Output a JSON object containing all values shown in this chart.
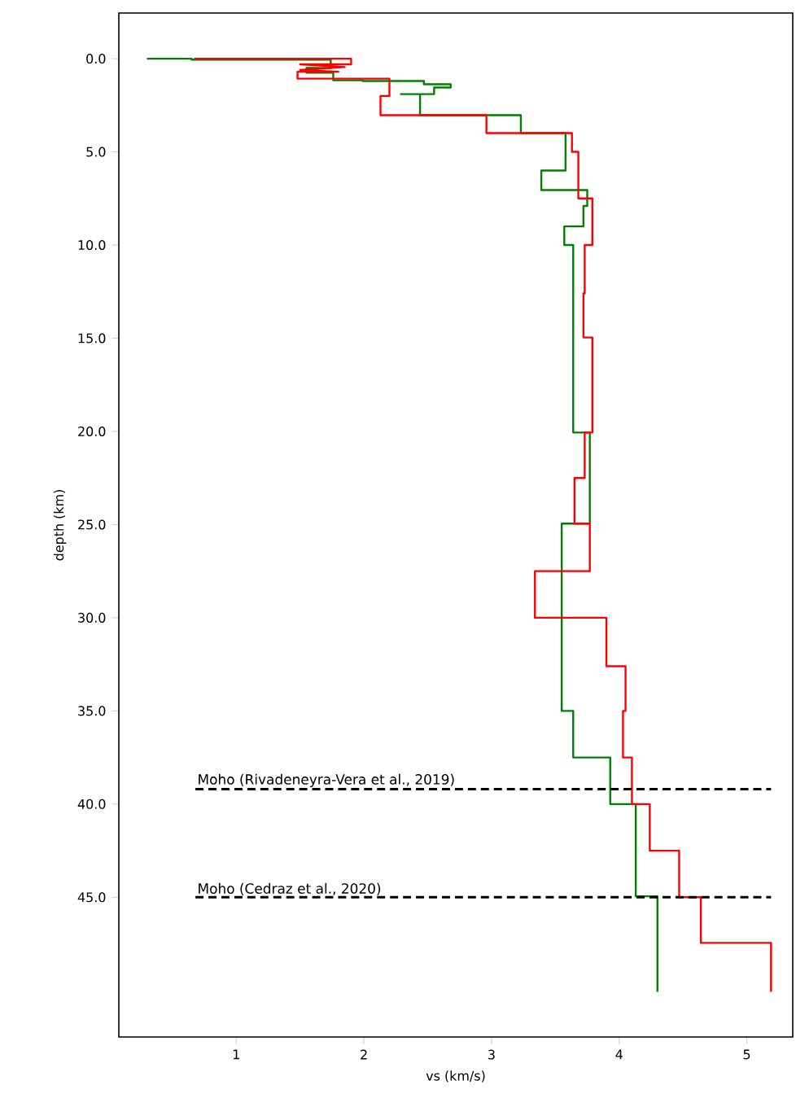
{
  "chart_data": {
    "type": "line",
    "xlabel": "vs (km/s)",
    "ylabel": "depth (km)",
    "xlim": [
      0.08,
      5.36
    ],
    "ylim": [
      52.5,
      -2.45
    ],
    "xticks": [
      1,
      2,
      3,
      4,
      5
    ],
    "yticks": [
      {
        "value": 0,
        "label": "0.0"
      },
      {
        "value": 5,
        "label": "5.0"
      },
      {
        "value": 10,
        "label": "10.0"
      },
      {
        "value": 15,
        "label": "15.0"
      },
      {
        "value": 20,
        "label": "20.0"
      },
      {
        "value": 25,
        "label": "25.0"
      },
      {
        "value": 30,
        "label": "30.0"
      },
      {
        "value": 35,
        "label": "35.0"
      },
      {
        "value": 40,
        "label": "40.0"
      },
      {
        "value": 45,
        "label": "45.0"
      }
    ],
    "grid": false,
    "legend": false,
    "marker": "none",
    "series": [
      {
        "color": "#008000",
        "line_style": "solid",
        "x": [
          0.3,
          0.65,
          0.65,
          1.74,
          1.74,
          1.55,
          1.55,
          1.76,
          1.76,
          1.99,
          1.99,
          2.47,
          2.47,
          2.68,
          2.68,
          2.55,
          2.55,
          2.29,
          2.44,
          2.44,
          3.23,
          3.23,
          3.58,
          3.58,
          3.39,
          3.39,
          3.75,
          3.75,
          3.72,
          3.72,
          3.57,
          3.57,
          3.64,
          3.64,
          3.77,
          3.77,
          3.55,
          3.55,
          3.64,
          3.64,
          3.93,
          3.93,
          4.13,
          4.13,
          4.3,
          4.3
        ],
        "values": [
          0,
          0,
          0.05,
          0.05,
          0.5,
          0.5,
          0.75,
          0.75,
          1.16,
          1.16,
          1.2,
          1.2,
          1.37,
          1.37,
          1.55,
          1.55,
          1.9,
          1.9,
          1.9,
          3.03,
          3.03,
          3.99,
          3.99,
          6.0,
          6.0,
          7.05,
          7.05,
          7.9,
          7.9,
          9.0,
          9.0,
          10.0,
          10.0,
          20.06,
          20.06,
          24.95,
          24.95,
          35.0,
          35.0,
          37.5,
          37.5,
          40.0,
          40.0,
          44.95,
          44.95,
          50.07
        ]
      },
      {
        "color": "#ff0000",
        "line_style": "solid",
        "x": [
          0.67,
          1.9,
          1.9,
          1.5,
          1.85,
          1.5,
          1.8,
          1.48,
          1.48,
          2.2,
          2.2,
          2.13,
          2.13,
          2.96,
          2.96,
          3.63,
          3.63,
          3.68,
          3.68,
          3.79,
          3.79,
          3.73,
          3.73,
          3.72,
          3.72,
          3.79,
          3.79,
          3.73,
          3.73,
          3.65,
          3.65,
          3.77,
          3.77,
          3.34,
          3.34,
          3.9,
          3.9,
          4.05,
          4.05,
          4.03,
          4.03,
          4.1,
          4.1,
          4.24,
          4.24,
          4.47,
          4.47,
          4.64,
          4.64,
          5.19,
          5.19
        ],
        "values": [
          0,
          0,
          0.3,
          0.3,
          0.45,
          0.6,
          0.7,
          0.7,
          1.07,
          1.07,
          2.0,
          2.0,
          3.03,
          3.03,
          3.99,
          3.99,
          5.0,
          5.0,
          7.5,
          7.5,
          10.0,
          10.0,
          12.6,
          12.6,
          14.96,
          14.96,
          20.06,
          20.06,
          22.5,
          22.5,
          24.95,
          24.95,
          27.5,
          27.5,
          30.0,
          30.0,
          32.6,
          32.6,
          35.0,
          35.0,
          37.5,
          37.5,
          40.0,
          40.0,
          42.5,
          42.5,
          45.0,
          45.0,
          47.45,
          47.45,
          50.07
        ]
      },
      {
        "name": "Moho (Rivadeneyra-Vera et al., 2019)",
        "color": "#000000",
        "line_style": "dashed",
        "x": [
          0.68,
          5.19
        ],
        "values": [
          39.2,
          39.2
        ]
      },
      {
        "name": "Moho (Cedraz et al., 2020)",
        "color": "#000000",
        "line_style": "dashed",
        "x": [
          0.68,
          5.19
        ],
        "values": [
          45.0,
          45.0
        ]
      }
    ]
  }
}
